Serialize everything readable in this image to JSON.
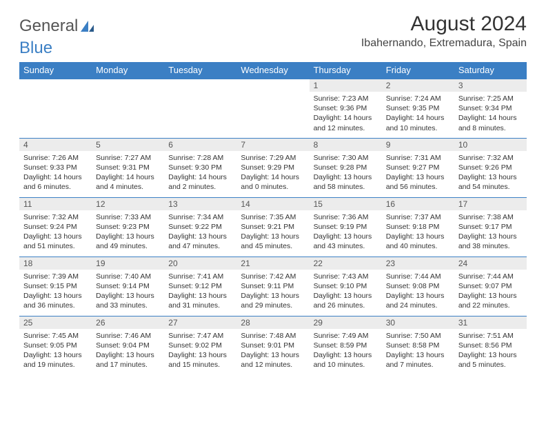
{
  "logo": {
    "text1": "General",
    "text2": "Blue"
  },
  "title": "August 2024",
  "location": "Ibahernando, Extremadura, Spain",
  "colors": {
    "header_bg": "#3b7fc4",
    "header_text": "#ffffff",
    "daynum_bg": "#ececec",
    "border": "#3b7fc4",
    "text": "#333333"
  },
  "weekdays": [
    "Sunday",
    "Monday",
    "Tuesday",
    "Wednesday",
    "Thursday",
    "Friday",
    "Saturday"
  ],
  "weeks": [
    [
      {
        "day": "",
        "sunrise": "",
        "sunset": "",
        "daylight": ""
      },
      {
        "day": "",
        "sunrise": "",
        "sunset": "",
        "daylight": ""
      },
      {
        "day": "",
        "sunrise": "",
        "sunset": "",
        "daylight": ""
      },
      {
        "day": "",
        "sunrise": "",
        "sunset": "",
        "daylight": ""
      },
      {
        "day": "1",
        "sunrise": "Sunrise: 7:23 AM",
        "sunset": "Sunset: 9:36 PM",
        "daylight": "Daylight: 14 hours and 12 minutes."
      },
      {
        "day": "2",
        "sunrise": "Sunrise: 7:24 AM",
        "sunset": "Sunset: 9:35 PM",
        "daylight": "Daylight: 14 hours and 10 minutes."
      },
      {
        "day": "3",
        "sunrise": "Sunrise: 7:25 AM",
        "sunset": "Sunset: 9:34 PM",
        "daylight": "Daylight: 14 hours and 8 minutes."
      }
    ],
    [
      {
        "day": "4",
        "sunrise": "Sunrise: 7:26 AM",
        "sunset": "Sunset: 9:33 PM",
        "daylight": "Daylight: 14 hours and 6 minutes."
      },
      {
        "day": "5",
        "sunrise": "Sunrise: 7:27 AM",
        "sunset": "Sunset: 9:31 PM",
        "daylight": "Daylight: 14 hours and 4 minutes."
      },
      {
        "day": "6",
        "sunrise": "Sunrise: 7:28 AM",
        "sunset": "Sunset: 9:30 PM",
        "daylight": "Daylight: 14 hours and 2 minutes."
      },
      {
        "day": "7",
        "sunrise": "Sunrise: 7:29 AM",
        "sunset": "Sunset: 9:29 PM",
        "daylight": "Daylight: 14 hours and 0 minutes."
      },
      {
        "day": "8",
        "sunrise": "Sunrise: 7:30 AM",
        "sunset": "Sunset: 9:28 PM",
        "daylight": "Daylight: 13 hours and 58 minutes."
      },
      {
        "day": "9",
        "sunrise": "Sunrise: 7:31 AM",
        "sunset": "Sunset: 9:27 PM",
        "daylight": "Daylight: 13 hours and 56 minutes."
      },
      {
        "day": "10",
        "sunrise": "Sunrise: 7:32 AM",
        "sunset": "Sunset: 9:26 PM",
        "daylight": "Daylight: 13 hours and 54 minutes."
      }
    ],
    [
      {
        "day": "11",
        "sunrise": "Sunrise: 7:32 AM",
        "sunset": "Sunset: 9:24 PM",
        "daylight": "Daylight: 13 hours and 51 minutes."
      },
      {
        "day": "12",
        "sunrise": "Sunrise: 7:33 AM",
        "sunset": "Sunset: 9:23 PM",
        "daylight": "Daylight: 13 hours and 49 minutes."
      },
      {
        "day": "13",
        "sunrise": "Sunrise: 7:34 AM",
        "sunset": "Sunset: 9:22 PM",
        "daylight": "Daylight: 13 hours and 47 minutes."
      },
      {
        "day": "14",
        "sunrise": "Sunrise: 7:35 AM",
        "sunset": "Sunset: 9:21 PM",
        "daylight": "Daylight: 13 hours and 45 minutes."
      },
      {
        "day": "15",
        "sunrise": "Sunrise: 7:36 AM",
        "sunset": "Sunset: 9:19 PM",
        "daylight": "Daylight: 13 hours and 43 minutes."
      },
      {
        "day": "16",
        "sunrise": "Sunrise: 7:37 AM",
        "sunset": "Sunset: 9:18 PM",
        "daylight": "Daylight: 13 hours and 40 minutes."
      },
      {
        "day": "17",
        "sunrise": "Sunrise: 7:38 AM",
        "sunset": "Sunset: 9:17 PM",
        "daylight": "Daylight: 13 hours and 38 minutes."
      }
    ],
    [
      {
        "day": "18",
        "sunrise": "Sunrise: 7:39 AM",
        "sunset": "Sunset: 9:15 PM",
        "daylight": "Daylight: 13 hours and 36 minutes."
      },
      {
        "day": "19",
        "sunrise": "Sunrise: 7:40 AM",
        "sunset": "Sunset: 9:14 PM",
        "daylight": "Daylight: 13 hours and 33 minutes."
      },
      {
        "day": "20",
        "sunrise": "Sunrise: 7:41 AM",
        "sunset": "Sunset: 9:12 PM",
        "daylight": "Daylight: 13 hours and 31 minutes."
      },
      {
        "day": "21",
        "sunrise": "Sunrise: 7:42 AM",
        "sunset": "Sunset: 9:11 PM",
        "daylight": "Daylight: 13 hours and 29 minutes."
      },
      {
        "day": "22",
        "sunrise": "Sunrise: 7:43 AM",
        "sunset": "Sunset: 9:10 PM",
        "daylight": "Daylight: 13 hours and 26 minutes."
      },
      {
        "day": "23",
        "sunrise": "Sunrise: 7:44 AM",
        "sunset": "Sunset: 9:08 PM",
        "daylight": "Daylight: 13 hours and 24 minutes."
      },
      {
        "day": "24",
        "sunrise": "Sunrise: 7:44 AM",
        "sunset": "Sunset: 9:07 PM",
        "daylight": "Daylight: 13 hours and 22 minutes."
      }
    ],
    [
      {
        "day": "25",
        "sunrise": "Sunrise: 7:45 AM",
        "sunset": "Sunset: 9:05 PM",
        "daylight": "Daylight: 13 hours and 19 minutes."
      },
      {
        "day": "26",
        "sunrise": "Sunrise: 7:46 AM",
        "sunset": "Sunset: 9:04 PM",
        "daylight": "Daylight: 13 hours and 17 minutes."
      },
      {
        "day": "27",
        "sunrise": "Sunrise: 7:47 AM",
        "sunset": "Sunset: 9:02 PM",
        "daylight": "Daylight: 13 hours and 15 minutes."
      },
      {
        "day": "28",
        "sunrise": "Sunrise: 7:48 AM",
        "sunset": "Sunset: 9:01 PM",
        "daylight": "Daylight: 13 hours and 12 minutes."
      },
      {
        "day": "29",
        "sunrise": "Sunrise: 7:49 AM",
        "sunset": "Sunset: 8:59 PM",
        "daylight": "Daylight: 13 hours and 10 minutes."
      },
      {
        "day": "30",
        "sunrise": "Sunrise: 7:50 AM",
        "sunset": "Sunset: 8:58 PM",
        "daylight": "Daylight: 13 hours and 7 minutes."
      },
      {
        "day": "31",
        "sunrise": "Sunrise: 7:51 AM",
        "sunset": "Sunset: 8:56 PM",
        "daylight": "Daylight: 13 hours and 5 minutes."
      }
    ]
  ]
}
